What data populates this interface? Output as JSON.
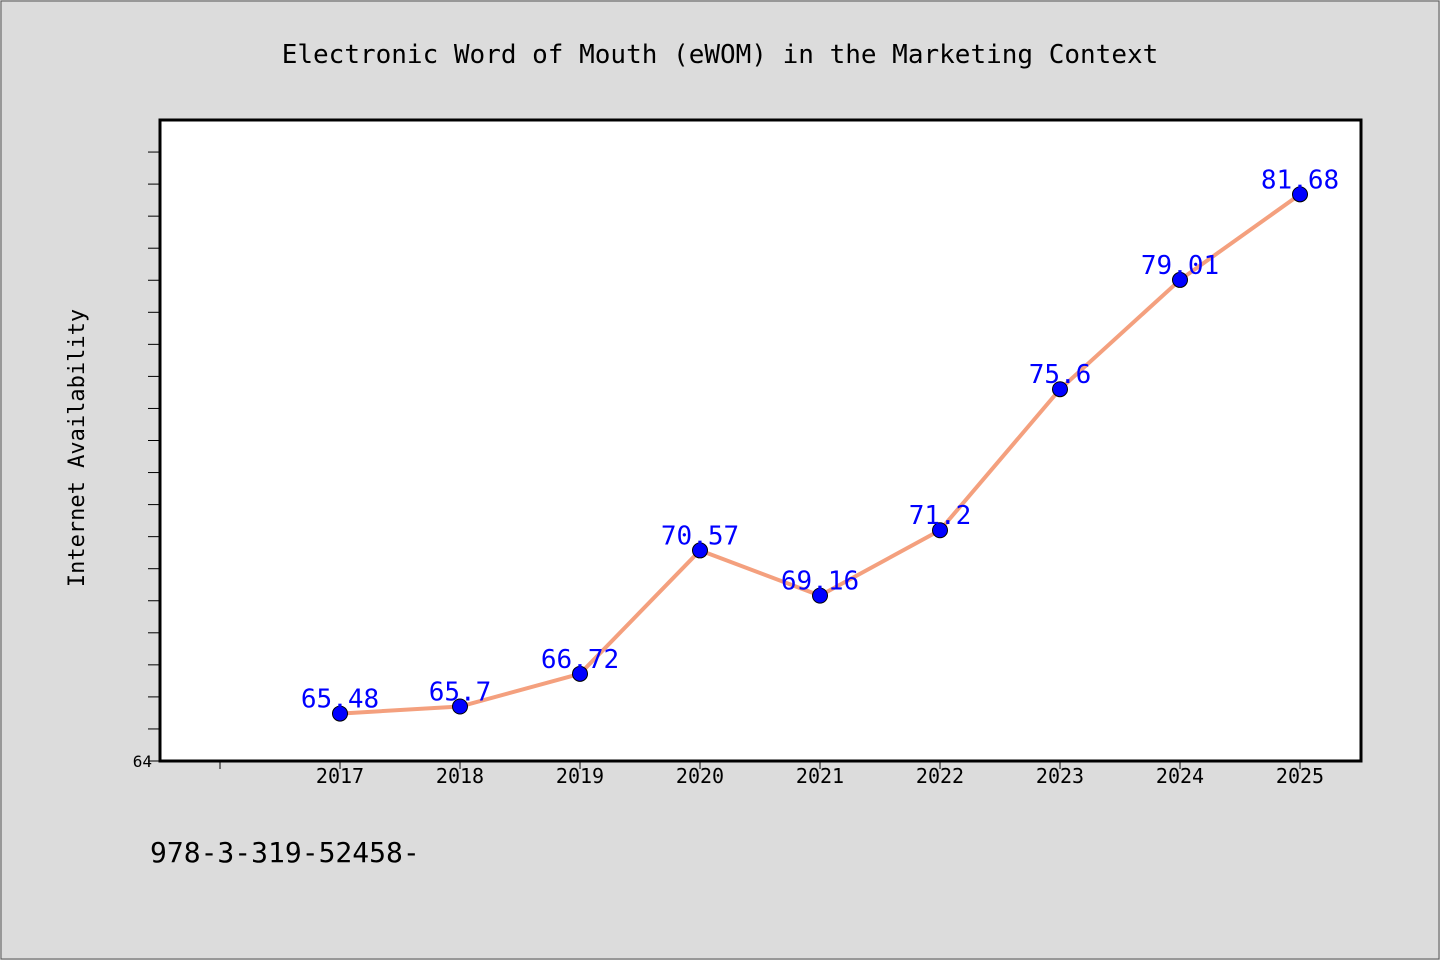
{
  "chart_data": {
    "type": "line",
    "title": "Electronic Word of Mouth (eWOM) in the Marketing Context",
    "xlabel": "",
    "ylabel": "Internet Availability",
    "categories": [
      "2017",
      "2018",
      "2019",
      "2020",
      "2021",
      "2022",
      "2023",
      "2024",
      "2025"
    ],
    "series": [
      {
        "values": [
          65.48,
          65.7,
          66.72,
          70.57,
          69.16,
          71.2,
          75.6,
          79.01,
          81.68
        ],
        "labels": [
          "65.48",
          "65.7",
          "66.72",
          "70.57",
          "69.16",
          "71.2",
          "75.6",
          "79.01",
          "81.68"
        ]
      }
    ],
    "yticks_labeled": [
      "64"
    ],
    "ylim": [
      64,
      84
    ],
    "grid": false,
    "colors": {
      "line": "#f4a07e",
      "marker": "#0000ff",
      "labels": "#0000ff",
      "plot_background": "#ffffff",
      "figure_background": "#dcdcdc"
    }
  },
  "footnote": "978-3-319-52458-"
}
